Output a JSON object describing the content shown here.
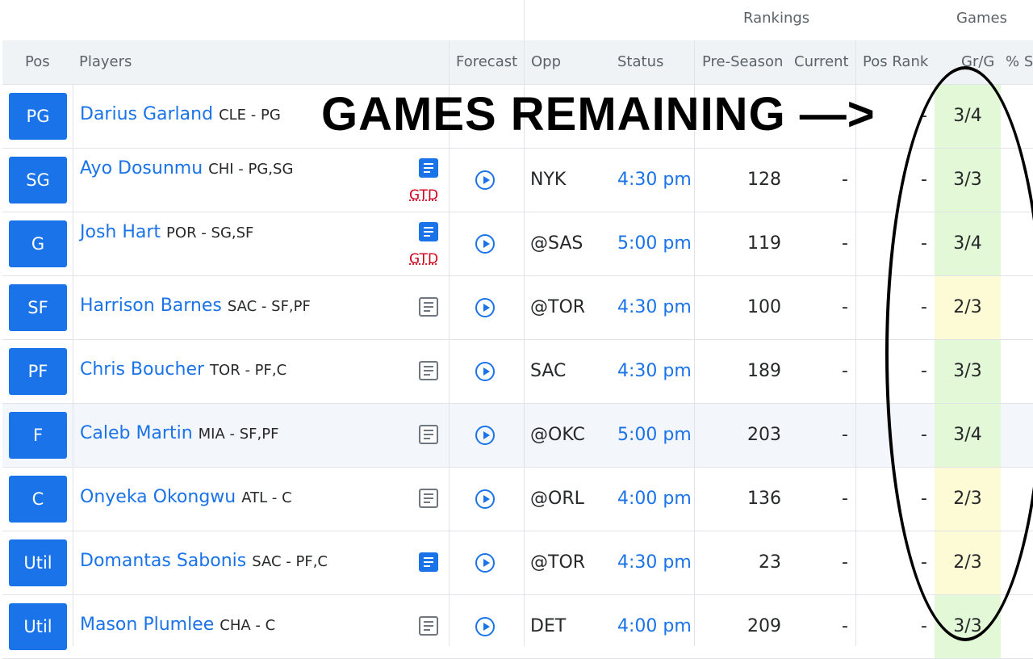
{
  "groups": {
    "rankings": "Rankings",
    "games": "Games"
  },
  "columns": {
    "pos": "Pos",
    "players": "Players",
    "forecast": "Forecast",
    "opp": "Opp",
    "status": "Status",
    "preseason": "Pre-Season",
    "current": "Current",
    "pos_rank": "Pos Rank",
    "grg": "Gr/G",
    "pct": "% S"
  },
  "annotation": "GAMES REMAINING —>",
  "colors": {
    "accent": "#1a73e8",
    "injury": "#d0021b",
    "gr_good": "#e2f8d6",
    "gr_mid": "#fdfbd5"
  },
  "rows": [
    {
      "pos": "PG",
      "name": "Darius Garland",
      "team": "CLE - PG",
      "note": "",
      "gtd": "",
      "opp": "",
      "status": "",
      "pre": "",
      "current": "",
      "pos_rank": "-",
      "grg": "3/4",
      "grg_level": "green",
      "highlight": false
    },
    {
      "pos": "SG",
      "name": "Ayo Dosunmu",
      "team": "CHI - PG,SG",
      "note": "blue",
      "gtd": "GTD",
      "opp": "NYK",
      "status": "4:30 pm",
      "pre": "128",
      "current": "-",
      "pos_rank": "-",
      "grg": "3/3",
      "grg_level": "green",
      "highlight": false
    },
    {
      "pos": "G",
      "name": "Josh Hart",
      "team": "POR - SG,SF",
      "note": "blue",
      "gtd": "GTD",
      "opp": "@SAS",
      "status": "5:00 pm",
      "pre": "119",
      "current": "-",
      "pos_rank": "-",
      "grg": "3/4",
      "grg_level": "green",
      "highlight": false
    },
    {
      "pos": "SF",
      "name": "Harrison Barnes",
      "team": "SAC - SF,PF",
      "note": "grey",
      "gtd": "",
      "opp": "@TOR",
      "status": "4:30 pm",
      "pre": "100",
      "current": "-",
      "pos_rank": "-",
      "grg": "2/3",
      "grg_level": "yellow",
      "highlight": false
    },
    {
      "pos": "PF",
      "name": "Chris Boucher",
      "team": "TOR - PF,C",
      "note": "grey",
      "gtd": "",
      "opp": "SAC",
      "status": "4:30 pm",
      "pre": "189",
      "current": "-",
      "pos_rank": "-",
      "grg": "3/3",
      "grg_level": "green",
      "highlight": false
    },
    {
      "pos": "F",
      "name": "Caleb Martin",
      "team": "MIA - SF,PF",
      "note": "grey",
      "gtd": "",
      "opp": "@OKC",
      "status": "5:00 pm",
      "pre": "203",
      "current": "-",
      "pos_rank": "-",
      "grg": "3/4",
      "grg_level": "green",
      "highlight": true
    },
    {
      "pos": "C",
      "name": "Onyeka Okongwu",
      "team": "ATL - C",
      "note": "grey",
      "gtd": "",
      "opp": "@ORL",
      "status": "4:00 pm",
      "pre": "136",
      "current": "-",
      "pos_rank": "-",
      "grg": "2/3",
      "grg_level": "yellow",
      "highlight": false
    },
    {
      "pos": "Util",
      "name": "Domantas Sabonis",
      "team": "SAC - PF,C",
      "note": "blue",
      "gtd": "",
      "opp": "@TOR",
      "status": "4:30 pm",
      "pre": "23",
      "current": "-",
      "pos_rank": "-",
      "grg": "2/3",
      "grg_level": "yellow",
      "highlight": false
    },
    {
      "pos": "Util",
      "name": "Mason Plumlee",
      "team": "CHA - C",
      "note": "grey",
      "gtd": "",
      "opp": "DET",
      "status": "4:00 pm",
      "pre": "209",
      "current": "-",
      "pos_rank": "-",
      "grg": "3/3",
      "grg_level": "green",
      "highlight": false
    }
  ]
}
